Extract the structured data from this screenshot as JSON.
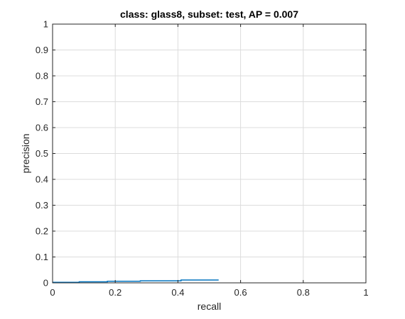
{
  "chart_data": {
    "type": "line",
    "title": "class: glass8, subset: test, AP = 0.007",
    "xlabel": "recall",
    "ylabel": "precision",
    "xlim": [
      0,
      1
    ],
    "ylim": [
      0,
      1
    ],
    "grid": true,
    "x_ticks": [
      0,
      0.2,
      0.4,
      0.6,
      0.8,
      1
    ],
    "x_tick_labels": [
      "0",
      "0.2",
      "0.4",
      "0.6",
      "0.8",
      "1"
    ],
    "y_ticks": [
      0,
      0.1,
      0.2,
      0.3,
      0.4,
      0.5,
      0.6,
      0.7,
      0.8,
      0.9,
      1
    ],
    "y_tick_labels": [
      "0",
      "0.1",
      "0.2",
      "0.3",
      "0.4",
      "0.5",
      "0.6",
      "0.7",
      "0.8",
      "0.9",
      "1"
    ],
    "series": [
      {
        "color": "#0072bd",
        "x": [
          0,
          0.085,
          0.085,
          0.175,
          0.175,
          0.28,
          0.28,
          0.41,
          0.41,
          0.53
        ],
        "y": [
          0.002,
          0.002,
          0.004,
          0.004,
          0.006,
          0.006,
          0.008,
          0.008,
          0.011,
          0.011
        ]
      }
    ]
  }
}
